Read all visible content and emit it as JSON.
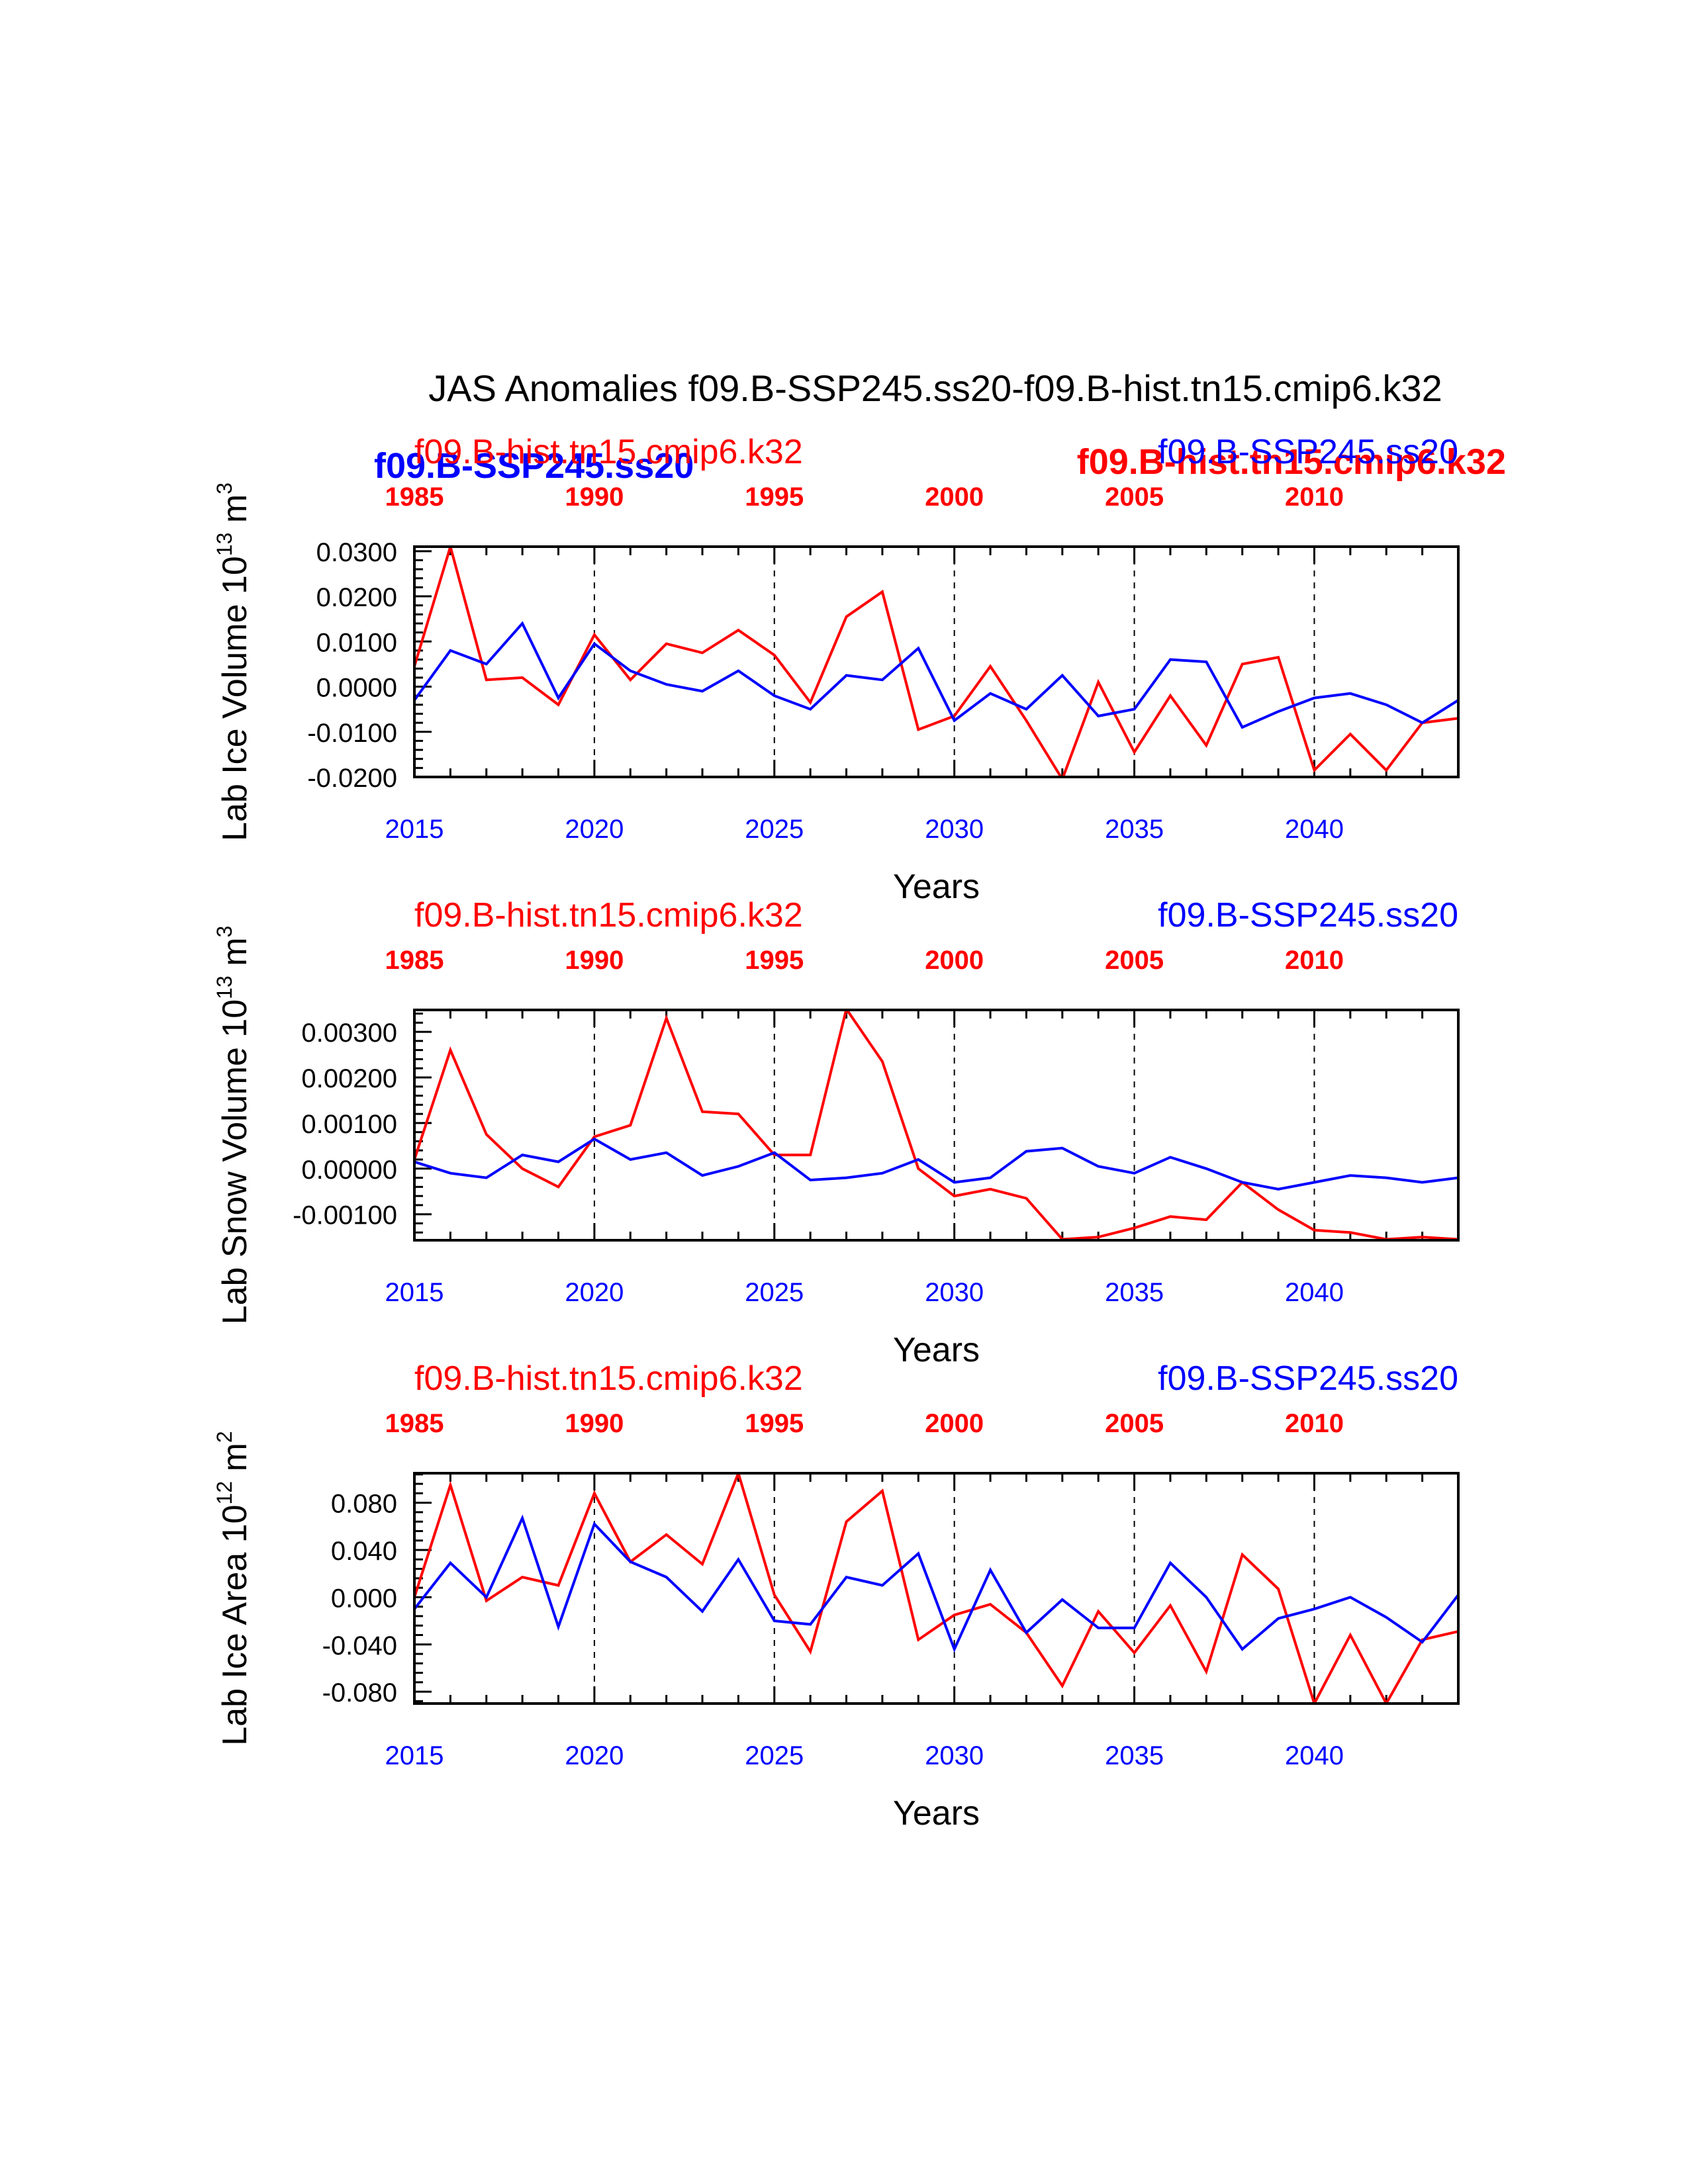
{
  "title": "JAS Anomalies f09.B-SSP245.ss20-f09.B-hist.tn15.cmip6.k32",
  "colors": {
    "hist": "#ff0000",
    "ssp": "#0000ff",
    "axis": "#000000"
  },
  "overlay_labels": {
    "ssp_bold_left": "f09.B-SSP245.ss20",
    "hist_bold_right": "f09.B-hist.tn15.cmip6.k32"
  },
  "chart_data": [
    {
      "type": "line",
      "ylabel": "Lab Ice Volume 10",
      "ylabel_exp": "13",
      "ylabel_unit": "m",
      "ylabel_unit_exp": "3",
      "xlabel": "Years",
      "top_left_series_label": "f09.B-hist.tn15.cmip6.k32",
      "top_right_series_label": "f09.B-SSP245.ss20",
      "xlim": [
        2015,
        2044
      ],
      "ylim": [
        -0.02,
        0.031
      ],
      "yticks": [
        -0.02,
        -0.01,
        0.0,
        0.01,
        0.02,
        0.03
      ],
      "ytick_labels": [
        "-0.0200",
        "-0.0100",
        "0.0000",
        "0.0100",
        "0.0200",
        "0.0300"
      ],
      "bottom_ticks": [
        2015,
        2020,
        2025,
        2030,
        2035,
        2040
      ],
      "bottom_tick_labels": [
        "2015",
        "2020",
        "2025",
        "2030",
        "2035",
        "2040"
      ],
      "top_tick_labels": [
        "1985",
        "1990",
        "1995",
        "2000",
        "2005",
        "2010"
      ],
      "grid": "dashed vertical at major ticks",
      "series": [
        {
          "name": "f09.B-hist.tn15.cmip6.k32",
          "color": "#ff0000",
          "x": [
            2015,
            2016,
            2017,
            2018,
            2019,
            2020,
            2021,
            2022,
            2023,
            2024,
            2025,
            2026,
            2027,
            2028,
            2029,
            2030,
            2031,
            2032,
            2033,
            2034,
            2035,
            2036,
            2037,
            2038,
            2039,
            2040,
            2041,
            2042,
            2043,
            2044
          ],
          "values": [
            0.0045,
            0.031,
            0.0015,
            0.002,
            -0.004,
            0.0115,
            0.0015,
            0.0095,
            0.0075,
            0.0125,
            0.007,
            -0.0035,
            0.0155,
            0.021,
            -0.0095,
            -0.0065,
            0.0045,
            -0.0075,
            -0.0205,
            0.001,
            -0.0145,
            -0.002,
            -0.013,
            0.005,
            0.0065,
            -0.0185,
            -0.0105,
            -0.0185,
            -0.008,
            -0.007
          ]
        },
        {
          "name": "f09.B-SSP245.ss20",
          "color": "#0000ff",
          "x": [
            2015,
            2016,
            2017,
            2018,
            2019,
            2020,
            2021,
            2022,
            2023,
            2024,
            2025,
            2026,
            2027,
            2028,
            2029,
            2030,
            2031,
            2032,
            2033,
            2034,
            2035,
            2036,
            2037,
            2038,
            2039,
            2040,
            2041,
            2042,
            2043,
            2044
          ],
          "values": [
            -0.003,
            0.008,
            0.005,
            0.014,
            -0.0025,
            0.0095,
            0.0035,
            0.0005,
            -0.001,
            0.0035,
            -0.002,
            -0.005,
            0.0025,
            0.0015,
            0.0085,
            -0.0075,
            -0.0015,
            -0.005,
            0.0025,
            -0.0065,
            -0.005,
            0.006,
            0.0055,
            -0.009,
            -0.0055,
            -0.0025,
            -0.0015,
            -0.004,
            -0.008,
            -0.003
          ]
        }
      ]
    },
    {
      "type": "line",
      "ylabel": "Lab Snow Volume 10",
      "ylabel_exp": "13",
      "ylabel_unit": "m",
      "ylabel_unit_exp": "3",
      "xlabel": "Years",
      "top_left_series_label": "f09.B-hist.tn15.cmip6.k32",
      "top_right_series_label": "f09.B-SSP245.ss20",
      "xlim": [
        2015,
        2044
      ],
      "ylim": [
        -0.00157,
        0.00348
      ],
      "yticks": [
        -0.001,
        0.0,
        0.001,
        0.002,
        0.003
      ],
      "ytick_labels": [
        "-0.00100",
        "0.00000",
        "0.00100",
        "0.00200",
        "0.00300"
      ],
      "bottom_ticks": [
        2015,
        2020,
        2025,
        2030,
        2035,
        2040
      ],
      "bottom_tick_labels": [
        "2015",
        "2020",
        "2025",
        "2030",
        "2035",
        "2040"
      ],
      "top_tick_labels": [
        "1985",
        "1990",
        "1995",
        "2000",
        "2005",
        "2010"
      ],
      "grid": "dashed vertical at major ticks",
      "series": [
        {
          "name": "f09.B-hist.tn15.cmip6.k32",
          "color": "#ff0000",
          "x": [
            2015,
            2016,
            2017,
            2018,
            2019,
            2020,
            2021,
            2022,
            2023,
            2024,
            2025,
            2026,
            2027,
            2028,
            2029,
            2030,
            2031,
            2032,
            2033,
            2034,
            2035,
            2036,
            2037,
            2038,
            2039,
            2040,
            2041,
            2042,
            2043,
            2044
          ],
          "values": [
            0.0002,
            0.0026,
            0.00075,
            0.0,
            -0.0004,
            0.0007,
            0.00095,
            0.0033,
            0.00125,
            0.0012,
            0.0003,
            0.0003,
            0.0035,
            0.00235,
            0.0,
            -0.0006,
            -0.00045,
            -0.00065,
            -0.00155,
            -0.0015,
            -0.0013,
            -0.00105,
            -0.00112,
            -0.0003,
            -0.0009,
            -0.00135,
            -0.0014,
            -0.00155,
            -0.0015,
            -0.00155
          ]
        },
        {
          "name": "f09.B-SSP245.ss20",
          "color": "#0000ff",
          "x": [
            2015,
            2016,
            2017,
            2018,
            2019,
            2020,
            2021,
            2022,
            2023,
            2024,
            2025,
            2026,
            2027,
            2028,
            2029,
            2030,
            2031,
            2032,
            2033,
            2034,
            2035,
            2036,
            2037,
            2038,
            2039,
            2040,
            2041,
            2042,
            2043,
            2044
          ],
          "values": [
            0.00015,
            -0.0001,
            -0.0002,
            0.0003,
            0.00015,
            0.00065,
            0.0002,
            0.00035,
            -0.00015,
            5e-05,
            0.00035,
            -0.00025,
            -0.0002,
            -0.0001,
            0.0002,
            -0.0003,
            -0.0002,
            0.00038,
            0.00045,
            5e-05,
            -0.0001,
            0.00025,
            0.0,
            -0.0003,
            -0.00045,
            -0.0003,
            -0.00015,
            -0.0002,
            -0.0003,
            -0.0002
          ]
        }
      ]
    },
    {
      "type": "line",
      "ylabel": "Lab Ice Area 10",
      "ylabel_exp": "12",
      "ylabel_unit": "m",
      "ylabel_unit_exp": "2",
      "xlabel": "Years",
      "top_left_series_label": "f09.B-hist.tn15.cmip6.k32",
      "top_right_series_label": "f09.B-SSP245.ss20",
      "xlim": [
        2015,
        2044
      ],
      "ylim": [
        -0.09,
        0.105
      ],
      "yticks": [
        -0.08,
        -0.04,
        0.0,
        0.04,
        0.08
      ],
      "ytick_labels": [
        "-0.080",
        "-0.040",
        "0.000",
        "0.040",
        "0.080"
      ],
      "bottom_ticks": [
        2015,
        2020,
        2025,
        2030,
        2035,
        2040
      ],
      "bottom_tick_labels": [
        "2015",
        "2020",
        "2025",
        "2030",
        "2035",
        "2040"
      ],
      "top_tick_labels": [
        "1985",
        "1990",
        "1995",
        "2000",
        "2005",
        "2010"
      ],
      "grid": "dashed vertical at major ticks",
      "series": [
        {
          "name": "f09.B-hist.tn15.cmip6.k32",
          "color": "#ff0000",
          "x": [
            2015,
            2016,
            2017,
            2018,
            2019,
            2020,
            2021,
            2022,
            2023,
            2024,
            2025,
            2026,
            2027,
            2028,
            2029,
            2030,
            2031,
            2032,
            2033,
            2034,
            2035,
            2036,
            2037,
            2038,
            2039,
            2040,
            2041,
            2042,
            2043,
            2044
          ],
          "values": [
            0.0,
            0.095,
            -0.003,
            0.017,
            0.01,
            0.088,
            0.03,
            0.053,
            0.028,
            0.105,
            0.002,
            -0.046,
            0.064,
            0.09,
            -0.036,
            -0.015,
            -0.006,
            -0.03,
            -0.075,
            -0.012,
            -0.047,
            -0.007,
            -0.063,
            0.036,
            0.007,
            -0.09,
            -0.032,
            -0.09,
            -0.036,
            -0.029
          ]
        },
        {
          "name": "f09.B-SSP245.ss20",
          "color": "#0000ff",
          "x": [
            2015,
            2016,
            2017,
            2018,
            2019,
            2020,
            2021,
            2022,
            2023,
            2024,
            2025,
            2026,
            2027,
            2028,
            2029,
            2030,
            2031,
            2032,
            2033,
            2034,
            2035,
            2036,
            2037,
            2038,
            2039,
            2040,
            2041,
            2042,
            2043,
            2044
          ],
          "values": [
            -0.01,
            0.029,
            0.0,
            0.067,
            -0.025,
            0.062,
            0.03,
            0.017,
            -0.012,
            0.032,
            -0.02,
            -0.023,
            0.017,
            0.01,
            0.037,
            -0.044,
            0.023,
            -0.03,
            -0.002,
            -0.026,
            -0.026,
            0.029,
            0.0,
            -0.044,
            -0.018,
            -0.01,
            0.0,
            -0.017,
            -0.038,
            0.002
          ]
        }
      ]
    }
  ]
}
